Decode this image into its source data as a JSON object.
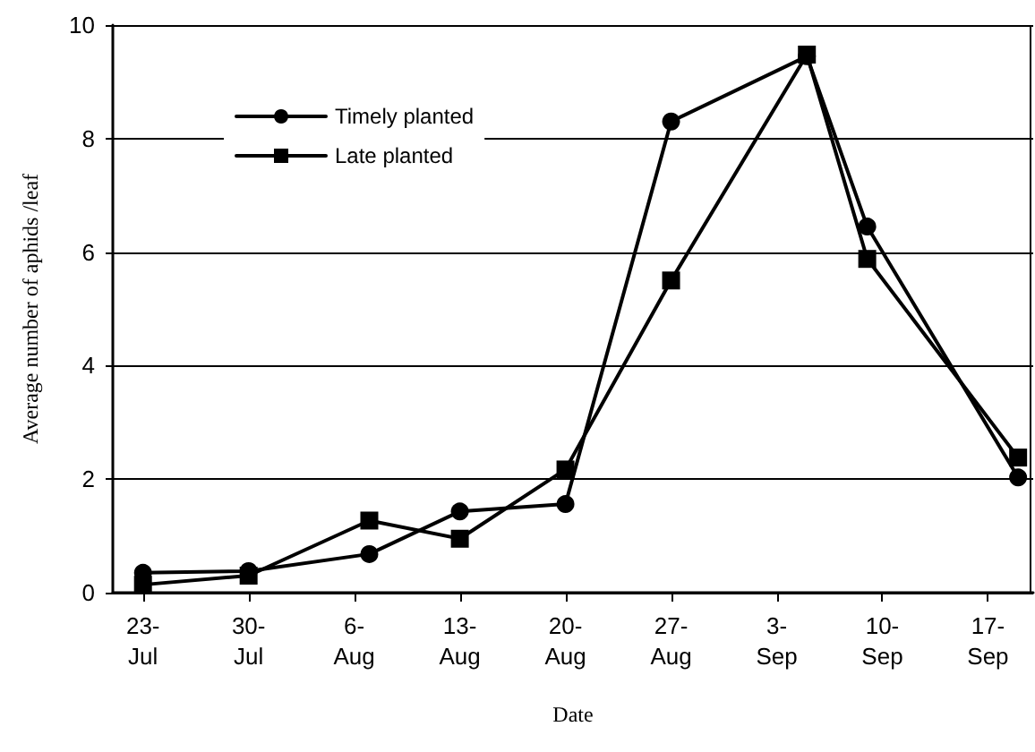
{
  "chart_data": {
    "type": "line",
    "xlabel": "Date",
    "ylabel": "Average number of aphids /leaf",
    "x": [
      "--07-23",
      "--07-30",
      "--08-07",
      "--08-13",
      "--08-20",
      "--08-27",
      "--09-05",
      "--09-09",
      "--09-19"
    ],
    "series": [
      {
        "name": "Timely planted",
        "color": "#000000",
        "marker": "circle",
        "values": [
          0.35,
          0.38,
          0.68,
          1.43,
          1.56,
          8.3,
          9.45,
          6.45,
          2.03
        ]
      },
      {
        "name": "Late planted",
        "color": "#000000",
        "marker": "square",
        "values": [
          0.14,
          0.3,
          1.27,
          0.95,
          2.17,
          5.5,
          9.48,
          5.88,
          2.38
        ]
      }
    ],
    "xlim": [
      "--07-21",
      "--09-20"
    ],
    "xticks": [
      {
        "value": "--07-23",
        "label": "23-\nJul"
      },
      {
        "value": "--07-30",
        "label": "30-\nJul"
      },
      {
        "value": "--08-06",
        "label": "6-\nAug"
      },
      {
        "value": "--08-13",
        "label": "13-\nAug"
      },
      {
        "value": "--08-20",
        "label": "20-\nAug"
      },
      {
        "value": "--08-27",
        "label": "27-\nAug"
      },
      {
        "value": "--09-03",
        "label": "3-\nSep"
      },
      {
        "value": "--09-10",
        "label": "10-\nSep"
      },
      {
        "value": "--09-17",
        "label": "17-\nSep"
      }
    ],
    "ylim": [
      0,
      10
    ],
    "yticks": [
      0,
      2,
      4,
      6,
      8,
      10
    ],
    "grid": "y",
    "legend": "top left",
    "line_style": "solid"
  }
}
